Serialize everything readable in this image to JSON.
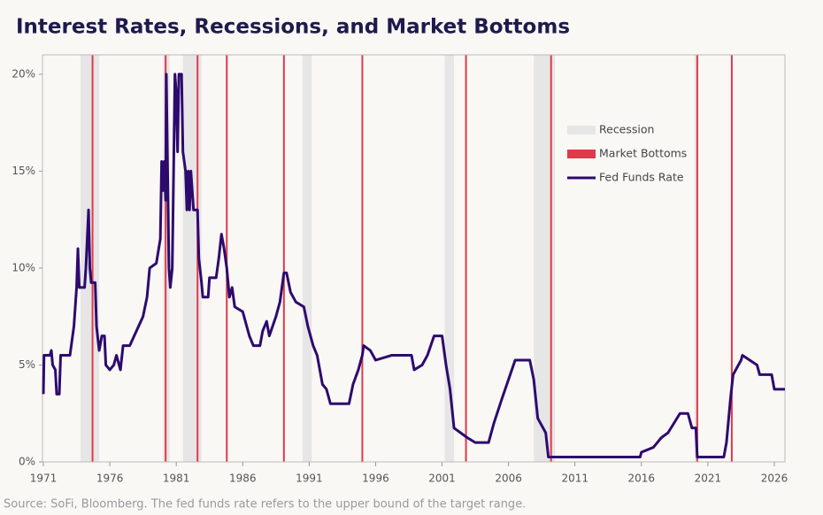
{
  "chart_data": {
    "type": "line",
    "title": "Interest Rates, Recessions, and Market Bottoms",
    "source": "Source: SoFi, Bloomberg. The fed funds rate refers to the upper bound of the target range.",
    "xlim": [
      1971,
      2026.8
    ],
    "xticks": [
      1971,
      1976,
      1981,
      1986,
      1991,
      1996,
      2001,
      2006,
      2011,
      2016,
      2021,
      2026
    ],
    "ylim": [
      0,
      21
    ],
    "yticks": [
      {
        "value": 0,
        "label": "0%"
      },
      {
        "value": 5,
        "label": "5%"
      },
      {
        "value": 10,
        "label": "10%"
      },
      {
        "value": 15,
        "label": "15%"
      },
      {
        "value": 20,
        "label": "20%"
      }
    ],
    "recessions": {
      "name": "Recession",
      "color": "#e6e6e6",
      "periods": [
        [
          1973.8,
          1975.2
        ],
        [
          1980.0,
          1980.5
        ],
        [
          1981.5,
          1982.9
        ],
        [
          1990.5,
          1991.2
        ],
        [
          2001.2,
          2001.9
        ],
        [
          2007.9,
          2009.5
        ],
        [
          2020.0,
          2020.3
        ]
      ]
    },
    "market_bottoms": {
      "name": "Market Bottoms",
      "color": "#e0394a",
      "x": [
        1974.7,
        1980.2,
        1982.6,
        1984.8,
        1989.1,
        1995.0,
        2002.8,
        2009.2,
        2020.2,
        2022.8
      ]
    },
    "x": [
      1971.0,
      1971.05,
      1971.5,
      1971.6,
      1971.7,
      1971.9,
      1972.0,
      1972.2,
      1972.3,
      1973.0,
      1973.3,
      1973.5,
      1973.6,
      1973.7,
      1974.1,
      1974.2,
      1974.4,
      1974.5,
      1974.6,
      1974.9,
      1975.0,
      1975.2,
      1975.4,
      1975.6,
      1975.7,
      1976.0,
      1976.3,
      1976.5,
      1976.8,
      1977.0,
      1977.5,
      1978.0,
      1978.5,
      1978.8,
      1979.0,
      1979.5,
      1979.8,
      1979.9,
      1980.0,
      1980.1,
      1980.2,
      1980.25,
      1980.35,
      1980.45,
      1980.55,
      1980.7,
      1980.8,
      1980.9,
      1981.0,
      1981.1,
      1981.2,
      1981.4,
      1981.5,
      1981.7,
      1981.8,
      1981.9,
      1982.0,
      1982.1,
      1982.3,
      1982.6,
      1982.7,
      1982.9,
      1983.0,
      1983.4,
      1983.5,
      1984.0,
      1984.2,
      1984.4,
      1984.6,
      1984.8,
      1985.0,
      1985.2,
      1985.4,
      1986.0,
      1986.5,
      1986.8,
      1987.3,
      1987.5,
      1987.8,
      1988.0,
      1988.5,
      1988.8,
      1989.1,
      1989.3,
      1989.6,
      1990.0,
      1990.6,
      1990.9,
      1991.3,
      1991.6,
      1992.0,
      1992.3,
      1992.6,
      1994.0,
      1994.3,
      1994.7,
      1995.0,
      1995.1,
      1995.6,
      1996.0,
      1997.2,
      1998.7,
      1998.9,
      1999.5,
      1999.9,
      2000.4,
      2001.0,
      2001.3,
      2001.6,
      2001.9,
      2002.9,
      2003.5,
      2004.5,
      2004.9,
      2005.5,
      2006.5,
      2007.6,
      2007.9,
      2008.2,
      2008.8,
      2009.0,
      2015.9,
      2016.0,
      2016.9,
      2017.2,
      2017.5,
      2018.0,
      2018.9,
      2019.5,
      2019.8,
      2020.1,
      2020.2,
      2022.2,
      2022.4,
      2022.7,
      2022.9,
      2023.5,
      2023.6,
      2024.7,
      2024.9,
      2025.8,
      2026.0,
      2026.8
    ],
    "series": [
      {
        "name": "Fed Funds Rate",
        "color": "#2d0a6e",
        "values": [
          3.5,
          5.5,
          5.5,
          5.75,
          5.0,
          4.75,
          3.5,
          3.5,
          5.5,
          5.5,
          7.0,
          9.0,
          11.0,
          9.0,
          9.0,
          10.0,
          13.0,
          10.0,
          9.25,
          9.25,
          7.0,
          5.75,
          6.5,
          6.5,
          5.0,
          4.75,
          5.0,
          5.5,
          4.75,
          6.0,
          6.0,
          6.75,
          7.5,
          8.5,
          10.0,
          10.25,
          11.5,
          15.5,
          14.0,
          15.5,
          13.5,
          20.0,
          15.0,
          10.0,
          9.0,
          10.0,
          15.0,
          20.0,
          19.0,
          16.0,
          20.0,
          20.0,
          16.0,
          15.0,
          13.0,
          15.0,
          13.0,
          15.0,
          13.0,
          13.0,
          10.5,
          9.25,
          8.5,
          8.5,
          9.5,
          9.5,
          10.5,
          11.75,
          11.0,
          10.0,
          8.5,
          9.0,
          8.0,
          7.75,
          6.5,
          6.0,
          6.0,
          6.75,
          7.25,
          6.5,
          7.5,
          8.25,
          9.75,
          9.75,
          8.75,
          8.25,
          8.0,
          7.0,
          6.0,
          5.5,
          4.0,
          3.75,
          3.0,
          3.0,
          4.0,
          4.75,
          5.5,
          6.0,
          5.75,
          5.25,
          5.5,
          5.5,
          4.75,
          5.0,
          5.5,
          6.5,
          6.5,
          5.0,
          3.75,
          1.75,
          1.25,
          1.0,
          1.0,
          2.0,
          3.25,
          5.25,
          5.25,
          4.25,
          2.25,
          1.5,
          0.25,
          0.25,
          0.5,
          0.75,
          1.0,
          1.25,
          1.5,
          2.5,
          2.5,
          1.75,
          1.75,
          0.25,
          0.25,
          1.0,
          3.25,
          4.5,
          5.25,
          5.5,
          5.0,
          4.5,
          4.5,
          3.75,
          3.75
        ]
      }
    ]
  }
}
